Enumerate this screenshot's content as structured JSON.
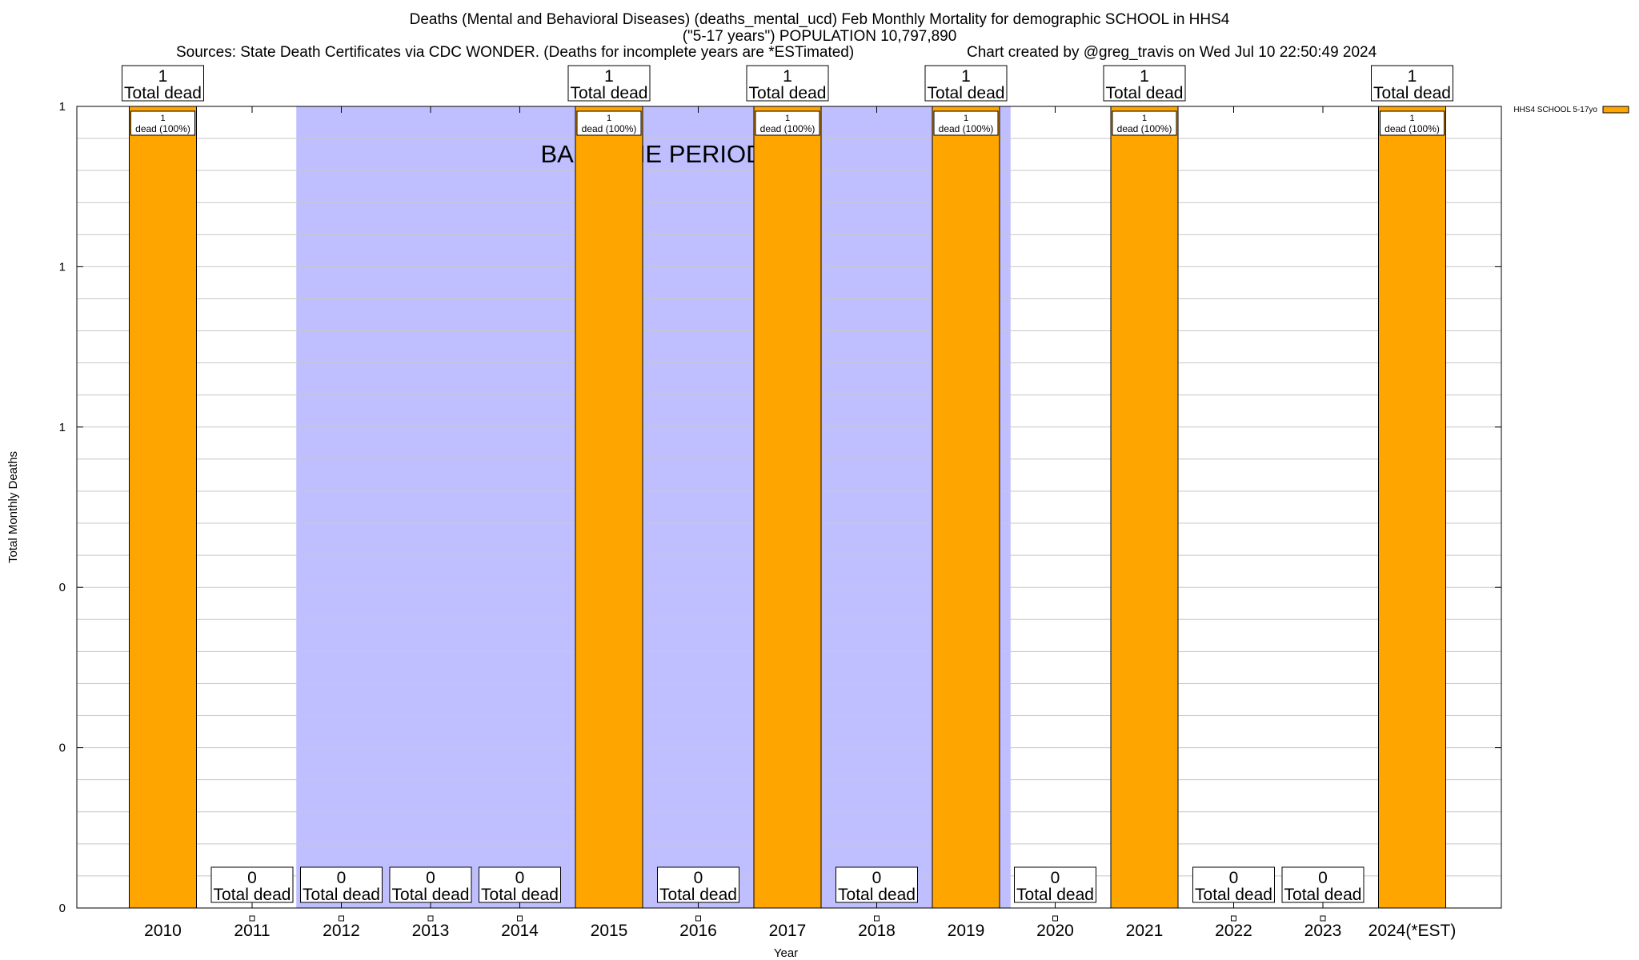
{
  "title": {
    "line1": "Deaths (Mental and Behavioral Diseases) (deaths_mental_ucd) Feb Monthly Mortality for demographic SCHOOL in HHS4",
    "line2": "(\"5-17 years\") POPULATION 10,797,890",
    "sources": "Sources: State Death Certificates via CDC WONDER. (Deaths for incomplete years are *ESTimated)",
    "credit": "Chart created by @greg_travis on Wed Jul 10 22:50:49 2024"
  },
  "chart_data": {
    "type": "bar",
    "categories": [
      "2010",
      "2011",
      "2012",
      "2013",
      "2014",
      "2015",
      "2016",
      "2017",
      "2018",
      "2019",
      "2020",
      "2021",
      "2022",
      "2023",
      "2024(*EST)"
    ],
    "series": [
      {
        "name": "HHS4 SCHOOL 5-17yo",
        "values": [
          1,
          0,
          0,
          0,
          0,
          1,
          0,
          1,
          0,
          1,
          0,
          1,
          0,
          0,
          1
        ]
      }
    ],
    "total_label_text": "Total dead",
    "bar_label_suffix": "dead (100%)",
    "xlabel": "Year",
    "ylabel": "Total Monthly Deaths",
    "ylim": [
      0,
      1
    ],
    "y_tick_labels": [
      "0",
      "0",
      "0",
      "1",
      "1",
      "1"
    ],
    "baseline_label": "BASELINE PERIOD",
    "baseline_period": [
      "2012",
      "2019"
    ],
    "grid": true,
    "legend_position": "top-right",
    "colors": {
      "bar": "#FFA500",
      "baseline": "#BFBFFF",
      "grid": "#C8C8C8"
    }
  }
}
